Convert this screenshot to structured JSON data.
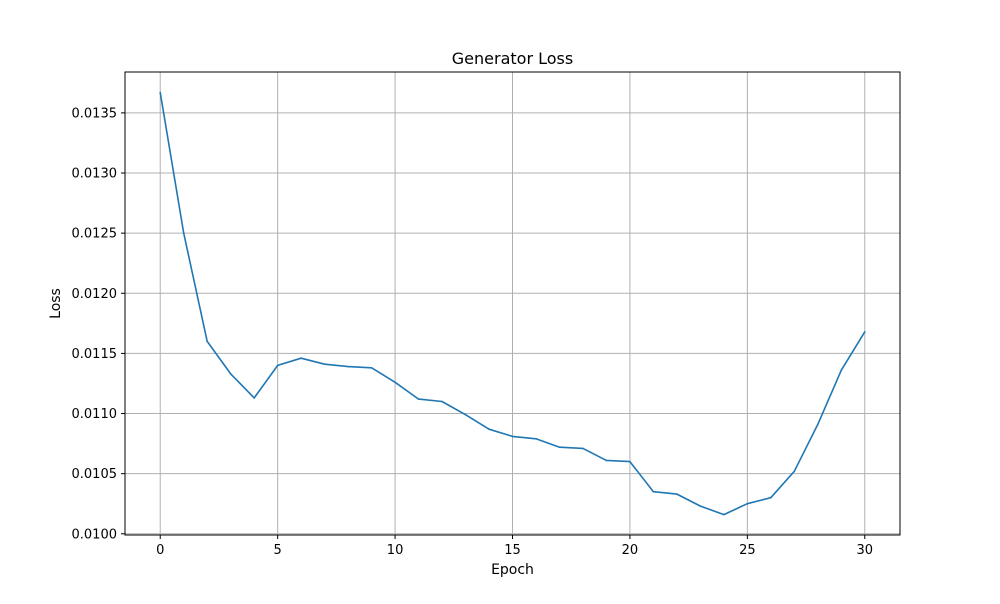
{
  "chart_data": {
    "type": "line",
    "title": "Generator Loss",
    "xlabel": "Epoch",
    "ylabel": "Loss",
    "xlim": [
      -1.5,
      31.5
    ],
    "ylim": [
      0.00999,
      0.01384
    ],
    "grid": true,
    "xticks": [
      0,
      5,
      10,
      15,
      20,
      25,
      30
    ],
    "xtick_labels": [
      "0",
      "5",
      "10",
      "15",
      "20",
      "25",
      "30"
    ],
    "yticks": [
      0.01,
      0.0105,
      0.011,
      0.0115,
      0.012,
      0.0125,
      0.013,
      0.0135
    ],
    "ytick_labels": [
      "0.0100",
      "0.0105",
      "0.0110",
      "0.0115",
      "0.0120",
      "0.0125",
      "0.0130",
      "0.0135"
    ],
    "series": [
      {
        "color": "#1f77b4",
        "x": [
          0,
          1,
          2,
          3,
          4,
          5,
          6,
          7,
          8,
          9,
          10,
          11,
          12,
          13,
          14,
          15,
          16,
          17,
          18,
          19,
          20,
          21,
          22,
          23,
          24,
          25,
          26,
          27,
          28,
          29,
          30
        ],
        "y": [
          0.01367,
          0.0125,
          0.0116,
          0.01133,
          0.01113,
          0.0114,
          0.01146,
          0.01141,
          0.01139,
          0.01138,
          0.01126,
          0.01112,
          0.0111,
          0.01099,
          0.01087,
          0.01081,
          0.01079,
          0.01072,
          0.01071,
          0.01061,
          0.0106,
          0.01035,
          0.01033,
          0.01023,
          0.01016,
          0.01025,
          0.0103,
          0.01052,
          0.01091,
          0.01136,
          0.01168
        ]
      }
    ]
  }
}
